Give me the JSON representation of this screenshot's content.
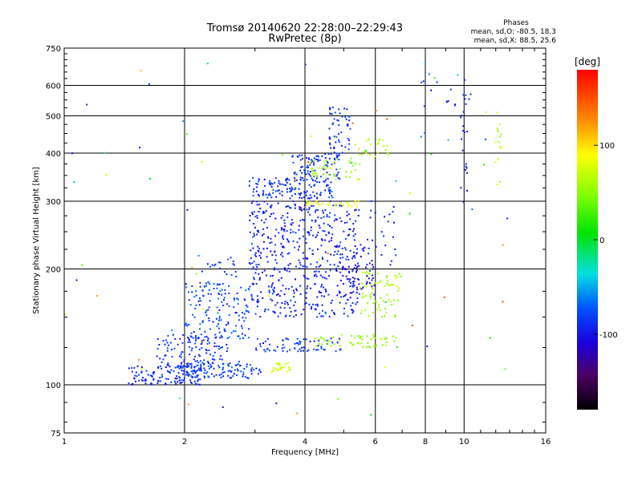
{
  "chart_data": {
    "type": "scatter",
    "title": "Tromsø 20140620 22:28:00–22:29:43",
    "subtitle": "RwPretec (8p)",
    "xlabel": "Frequency [MHz]",
    "ylabel": "Stationary phase Virtual Height [km]",
    "x_scale": "log",
    "y_scale": "log",
    "xlim": [
      1,
      16
    ],
    "ylim": [
      75,
      750
    ],
    "x_ticks": [
      1,
      2,
      4,
      6,
      8,
      10,
      16
    ],
    "y_ticks": [
      75,
      100,
      200,
      300,
      400,
      500,
      600,
      750
    ],
    "grid": true,
    "legend": {
      "title": "Phases",
      "lines": [
        "mean, sd,O: -80.5, 18.3",
        "mean, sd,X:  88.5, 25.6"
      ],
      "placement": "top-right"
    },
    "colorbar": {
      "label": "[deg]",
      "range": [
        -180,
        180
      ],
      "ticks": [
        100,
        0,
        -100
      ]
    },
    "clusters": [
      {
        "x": [
          1.45,
          2.2
        ],
        "y": [
          100,
          112
        ],
        "n": 120,
        "phase": [
          -110,
          -70
        ]
      },
      {
        "x": [
          1.9,
          3.1
        ],
        "y": [
          104,
          115
        ],
        "n": 100,
        "phase": [
          -100,
          -60
        ]
      },
      {
        "x": [
          1.7,
          2.6
        ],
        "y": [
          110,
          135
        ],
        "n": 120,
        "phase": [
          -105,
          -70
        ]
      },
      {
        "x": [
          2.0,
          2.9
        ],
        "y": [
          130,
          185
        ],
        "n": 160,
        "phase": [
          -100,
          -60
        ]
      },
      {
        "x": [
          2.2,
          2.7
        ],
        "y": [
          190,
          215
        ],
        "n": 20,
        "phase": [
          -100,
          -70
        ]
      },
      {
        "x": [
          2.9,
          5.5
        ],
        "y": [
          150,
          300
        ],
        "n": 520,
        "phase": [
          -110,
          -75
        ]
      },
      {
        "x": [
          2.9,
          4.7
        ],
        "y": [
          305,
          345
        ],
        "n": 140,
        "phase": [
          -100,
          -70
        ]
      },
      {
        "x": [
          3.7,
          4.9
        ],
        "y": [
          340,
          400
        ],
        "n": 90,
        "phase": [
          -100,
          -75
        ]
      },
      {
        "x": [
          4.6,
          5.2
        ],
        "y": [
          400,
          530
        ],
        "n": 50,
        "phase": [
          -100,
          -70
        ]
      },
      {
        "x": [
          3.0,
          5.0
        ],
        "y": [
          122,
          132
        ],
        "n": 70,
        "phase": [
          -100,
          -70
        ]
      },
      {
        "x": [
          3.3,
          3.7
        ],
        "y": [
          108,
          114
        ],
        "n": 28,
        "phase": [
          60,
          90
        ]
      },
      {
        "x": [
          4.2,
          6.8
        ],
        "y": [
          125,
          135
        ],
        "n": 55,
        "phase": [
          40,
          60
        ]
      },
      {
        "x": [
          5.5,
          7.0
        ],
        "y": [
          150,
          200
        ],
        "n": 70,
        "phase": [
          45,
          75
        ]
      },
      {
        "x": [
          4.1,
          5.5
        ],
        "y": [
          340,
          390
        ],
        "n": 45,
        "phase": [
          45,
          75
        ]
      },
      {
        "x": [
          5.3,
          6.7
        ],
        "y": [
          390,
          440
        ],
        "n": 25,
        "phase": [
          55,
          80
        ]
      },
      {
        "x": [
          4.0,
          5.5
        ],
        "y": [
          290,
          300
        ],
        "n": 30,
        "phase": [
          70,
          100
        ]
      },
      {
        "x": [
          4.8,
          6.0
        ],
        "y": [
          170,
          230
        ],
        "n": 70,
        "phase": [
          -120,
          -90
        ]
      },
      {
        "x": [
          5.5,
          6.8
        ],
        "y": [
          200,
          300
        ],
        "n": 25,
        "phase": [
          -110,
          -80
        ]
      },
      {
        "x": [
          9.8,
          10.2
        ],
        "y": [
          270,
          600
        ],
        "n": 20,
        "phase": [
          -110,
          -80
        ]
      },
      {
        "x": [
          11.9,
          12.4
        ],
        "y": [
          330,
          560
        ],
        "n": 15,
        "phase": [
          50,
          90
        ]
      },
      {
        "x": [
          7.8,
          10.5
        ],
        "y": [
          490,
          620
        ],
        "n": 15,
        "phase": [
          -110,
          -80
        ]
      },
      {
        "x": [
          1.0,
          13.0
        ],
        "y": [
          80,
          700
        ],
        "n": 80,
        "phase": [
          -140,
          160
        ]
      }
    ]
  }
}
